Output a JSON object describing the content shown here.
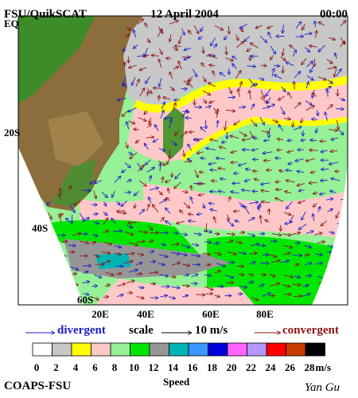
{
  "header": {
    "source": "FSU/QuikSCAT",
    "date": "12 April 2004",
    "time": "00:00"
  },
  "map": {
    "lat_labels": [
      "EQ",
      "20S",
      "40S",
      "60S"
    ],
    "lon_labels": [
      "20E",
      "40E",
      "60E",
      "80E"
    ]
  },
  "legend": {
    "divergent": "divergent",
    "scale": "scale",
    "scale_value": "10 m/s",
    "convergent": "convergent"
  },
  "colorbar": {
    "title": "Speed",
    "unit": "m/s",
    "labels": [
      0,
      2,
      4,
      6,
      8,
      10,
      12,
      14,
      16,
      18,
      20,
      22,
      24,
      26,
      28
    ],
    "colors": [
      "#ffffff",
      "#c8c8c8",
      "#ffff00",
      "#ffc8c8",
      "#96f096",
      "#00e600",
      "#969696",
      "#00b4b4",
      "#3c96ff",
      "#0000dc",
      "#ff64ff",
      "#b496ff",
      "#ff0000",
      "#c83c00",
      "#000000"
    ]
  },
  "footer": {
    "institution": "COAPS-FSU",
    "author": "Yan Gu"
  }
}
